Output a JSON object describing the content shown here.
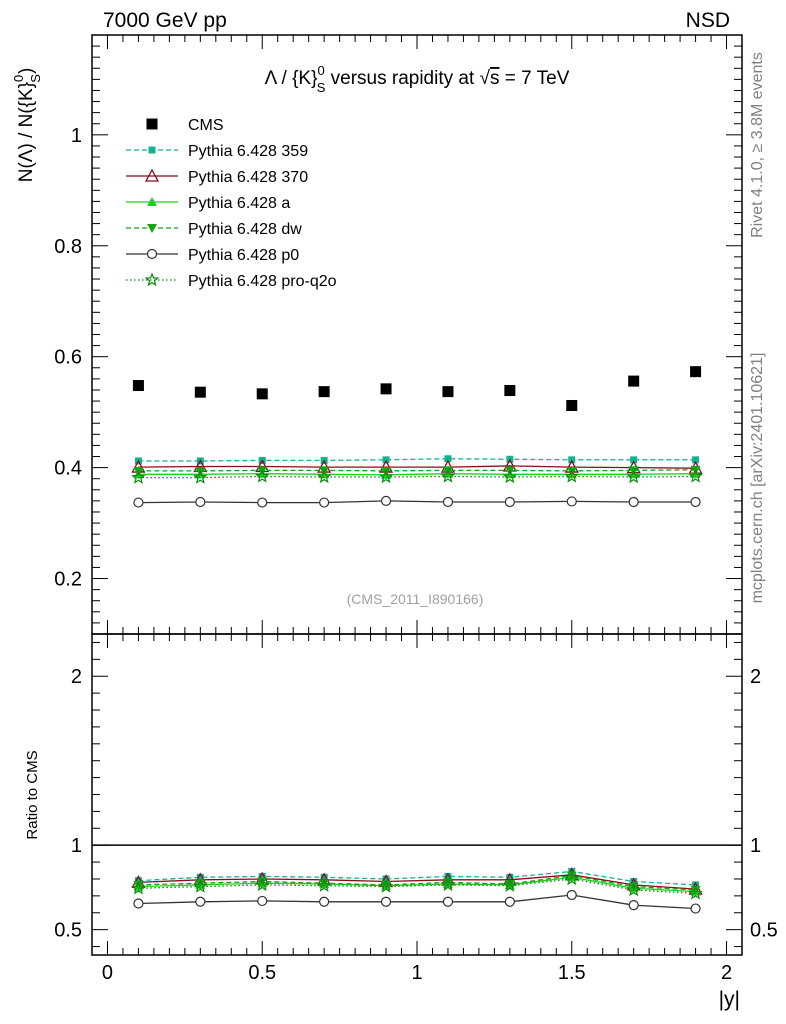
{
  "header": {
    "left": "7000 GeV pp",
    "right": "NSD"
  },
  "side_labels": {
    "rivet": "Rivet 4.1.0, ≥ 3.8M events",
    "mcplots": "mcplots.cern.ch [arXiv:2401.10621]"
  },
  "watermark": "(CMS_2011_I890166)",
  "chart_data": {
    "type": "scatter",
    "title": "Λ / {K}_S^0 versus rapidity at √s = 7 TeV",
    "title_parts": {
      "pre": "Λ / {K}",
      "sup": "0",
      "sub": "S",
      "mid": " versus rapidity at ",
      "sqrt": "√",
      "s": "s",
      "post": " = 7 TeV"
    },
    "ylabel": "N(Λ)  /  N({K}_S^0)",
    "ylabel_parts": {
      "pre": "N(Λ)  /  N({K}",
      "sup": "0",
      "sub": "S",
      "post": ")"
    },
    "xlabel": "|y|",
    "xlim": [
      -0.05,
      2.05
    ],
    "ylim": [
      0.1,
      1.18
    ],
    "xticks": [
      "0",
      "0.5",
      "1",
      "1.5",
      "2"
    ],
    "xtick_values": [
      0,
      0.5,
      1,
      1.5,
      2
    ],
    "yticks": [
      "0.2",
      "0.4",
      "0.6",
      "0.8",
      "1"
    ],
    "ytick_values": [
      0.2,
      0.4,
      0.6,
      0.8,
      1.0
    ],
    "x": [
      0.1,
      0.3,
      0.5,
      0.7,
      0.9,
      1.1,
      1.3,
      1.5,
      1.7,
      1.9
    ],
    "series": [
      {
        "name": "CMS",
        "color": "#000000",
        "marker": "square",
        "dash": "none",
        "values": [
          0.548,
          0.536,
          0.533,
          0.537,
          0.542,
          0.537,
          0.539,
          0.512,
          0.556,
          0.573
        ]
      },
      {
        "name": "Pythia 6.428 359",
        "color": "#12b38f",
        "marker": "smallsquare",
        "dash": "dashed",
        "values": [
          0.412,
          0.412,
          0.413,
          0.413,
          0.414,
          0.416,
          0.415,
          0.414,
          0.414,
          0.414
        ]
      },
      {
        "name": "Pythia 6.428 370",
        "color": "#8a0b1e",
        "marker": "triangle-open",
        "dash": "solid",
        "values": [
          0.401,
          0.402,
          0.402,
          0.401,
          0.401,
          0.401,
          0.403,
          0.401,
          0.4,
          0.399
        ]
      },
      {
        "name": "Pythia 6.428 a",
        "color": "#1fd11f",
        "marker": "triangle",
        "dash": "solid",
        "values": [
          0.388,
          0.388,
          0.389,
          0.388,
          0.387,
          0.389,
          0.388,
          0.388,
          0.388,
          0.389
        ]
      },
      {
        "name": "Pythia 6.428 dw",
        "color": "#12a612",
        "marker": "triangle-down",
        "dash": "dashed",
        "values": [
          0.394,
          0.394,
          0.395,
          0.395,
          0.394,
          0.395,
          0.395,
          0.394,
          0.395,
          0.396
        ]
      },
      {
        "name": "Pythia 6.428 p0",
        "color": "#333333",
        "marker": "circle-open",
        "dash": "solid",
        "values": [
          0.337,
          0.338,
          0.337,
          0.337,
          0.34,
          0.338,
          0.338,
          0.339,
          0.338,
          0.338
        ]
      },
      {
        "name": "Pythia 6.428 pro-q2o",
        "color": "#0d8a0d",
        "marker": "star",
        "dash": "dotted",
        "values": [
          0.382,
          0.382,
          0.384,
          0.383,
          0.383,
          0.384,
          0.383,
          0.384,
          0.383,
          0.384
        ]
      }
    ],
    "ratio": {
      "ylabel": "Ratio to CMS",
      "ylim": [
        0.35,
        2.25
      ],
      "yticks": [
        "0.5",
        "1",
        "2"
      ],
      "ytick_values": [
        0.5,
        1.0,
        2.0
      ],
      "reference": 1.0,
      "series": [
        {
          "name": "Pythia 6.428 359",
          "values": [
            0.79,
            0.81,
            0.815,
            0.81,
            0.8,
            0.815,
            0.81,
            0.845,
            0.785,
            0.765
          ]
        },
        {
          "name": "Pythia 6.428 370",
          "values": [
            0.78,
            0.795,
            0.8,
            0.795,
            0.785,
            0.795,
            0.795,
            0.825,
            0.765,
            0.74
          ]
        },
        {
          "name": "Pythia 6.428 a",
          "values": [
            0.755,
            0.765,
            0.775,
            0.77,
            0.76,
            0.77,
            0.765,
            0.81,
            0.745,
            0.725
          ]
        },
        {
          "name": "Pythia 6.428 dw",
          "values": [
            0.765,
            0.775,
            0.785,
            0.775,
            0.765,
            0.78,
            0.77,
            0.82,
            0.755,
            0.735
          ]
        },
        {
          "name": "Pythia 6.428 p0",
          "values": [
            0.655,
            0.665,
            0.67,
            0.665,
            0.665,
            0.665,
            0.665,
            0.705,
            0.645,
            0.625
          ]
        },
        {
          "name": "Pythia 6.428 pro-q2o",
          "values": [
            0.745,
            0.755,
            0.765,
            0.76,
            0.755,
            0.765,
            0.76,
            0.8,
            0.735,
            0.715
          ]
        }
      ]
    }
  }
}
